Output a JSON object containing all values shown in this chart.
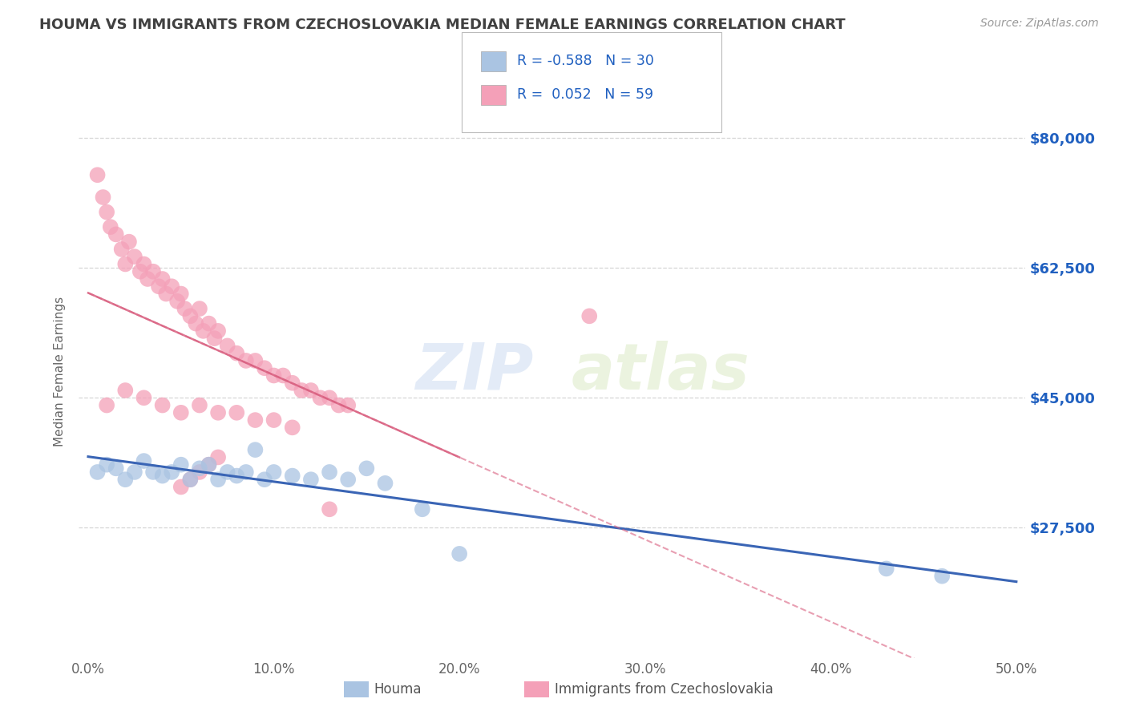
{
  "title": "HOUMA VS IMMIGRANTS FROM CZECHOSLOVAKIA MEDIAN FEMALE EARNINGS CORRELATION CHART",
  "source": "Source: ZipAtlas.com",
  "ylabel": "Median Female Earnings",
  "x_tick_labels": [
    "0.0%",
    "10.0%",
    "20.0%",
    "30.0%",
    "40.0%",
    "50.0%"
  ],
  "y_tick_labels": [
    "$27,500",
    "$45,000",
    "$62,500",
    "$80,000"
  ],
  "xlim": [
    0.0,
    0.5
  ],
  "ylim": [
    10000,
    87000
  ],
  "y_ticks": [
    27500,
    45000,
    62500,
    80000
  ],
  "x_ticks": [
    0.0,
    0.1,
    0.2,
    0.3,
    0.4,
    0.5
  ],
  "houma_R": "-0.588",
  "houma_N": "30",
  "czech_R": "0.052",
  "czech_N": "59",
  "houma_color": "#aac4e2",
  "czech_color": "#f4a0b8",
  "houma_line_color": "#3a65b5",
  "czech_line_color": "#d96080",
  "houma_scatter_x": [
    0.005,
    0.01,
    0.015,
    0.02,
    0.025,
    0.03,
    0.035,
    0.04,
    0.045,
    0.05,
    0.055,
    0.06,
    0.065,
    0.07,
    0.075,
    0.08,
    0.085,
    0.09,
    0.095,
    0.1,
    0.11,
    0.12,
    0.13,
    0.14,
    0.15,
    0.16,
    0.18,
    0.2,
    0.43,
    0.46
  ],
  "houma_scatter_y": [
    35000,
    36000,
    35500,
    34000,
    35000,
    36500,
    35000,
    34500,
    35000,
    36000,
    34000,
    35500,
    36000,
    34000,
    35000,
    34500,
    35000,
    38000,
    34000,
    35000,
    34500,
    34000,
    35000,
    34000,
    35500,
    33500,
    30000,
    24000,
    22000,
    21000
  ],
  "czech_scatter_x": [
    0.005,
    0.008,
    0.01,
    0.012,
    0.015,
    0.018,
    0.02,
    0.022,
    0.025,
    0.028,
    0.03,
    0.032,
    0.035,
    0.038,
    0.04,
    0.042,
    0.045,
    0.048,
    0.05,
    0.052,
    0.055,
    0.058,
    0.06,
    0.062,
    0.065,
    0.068,
    0.07,
    0.075,
    0.08,
    0.085,
    0.09,
    0.095,
    0.1,
    0.105,
    0.11,
    0.115,
    0.12,
    0.125,
    0.13,
    0.135,
    0.14,
    0.01,
    0.02,
    0.03,
    0.04,
    0.05,
    0.06,
    0.07,
    0.08,
    0.09,
    0.1,
    0.11,
    0.05,
    0.055,
    0.06,
    0.065,
    0.07,
    0.13,
    0.27
  ],
  "czech_scatter_y": [
    75000,
    72000,
    70000,
    68000,
    67000,
    65000,
    63000,
    66000,
    64000,
    62000,
    63000,
    61000,
    62000,
    60000,
    61000,
    59000,
    60000,
    58000,
    59000,
    57000,
    56000,
    55000,
    57000,
    54000,
    55000,
    53000,
    54000,
    52000,
    51000,
    50000,
    50000,
    49000,
    48000,
    48000,
    47000,
    46000,
    46000,
    45000,
    45000,
    44000,
    44000,
    44000,
    46000,
    45000,
    44000,
    43000,
    44000,
    43000,
    43000,
    42000,
    42000,
    41000,
    33000,
    34000,
    35000,
    36000,
    37000,
    30000,
    56000
  ],
  "watermark_zip": "ZIP",
  "watermark_atlas": "atlas",
  "background_color": "#ffffff",
  "grid_color": "#cccccc",
  "title_color": "#404040",
  "legend_text_color": "#2060c0"
}
